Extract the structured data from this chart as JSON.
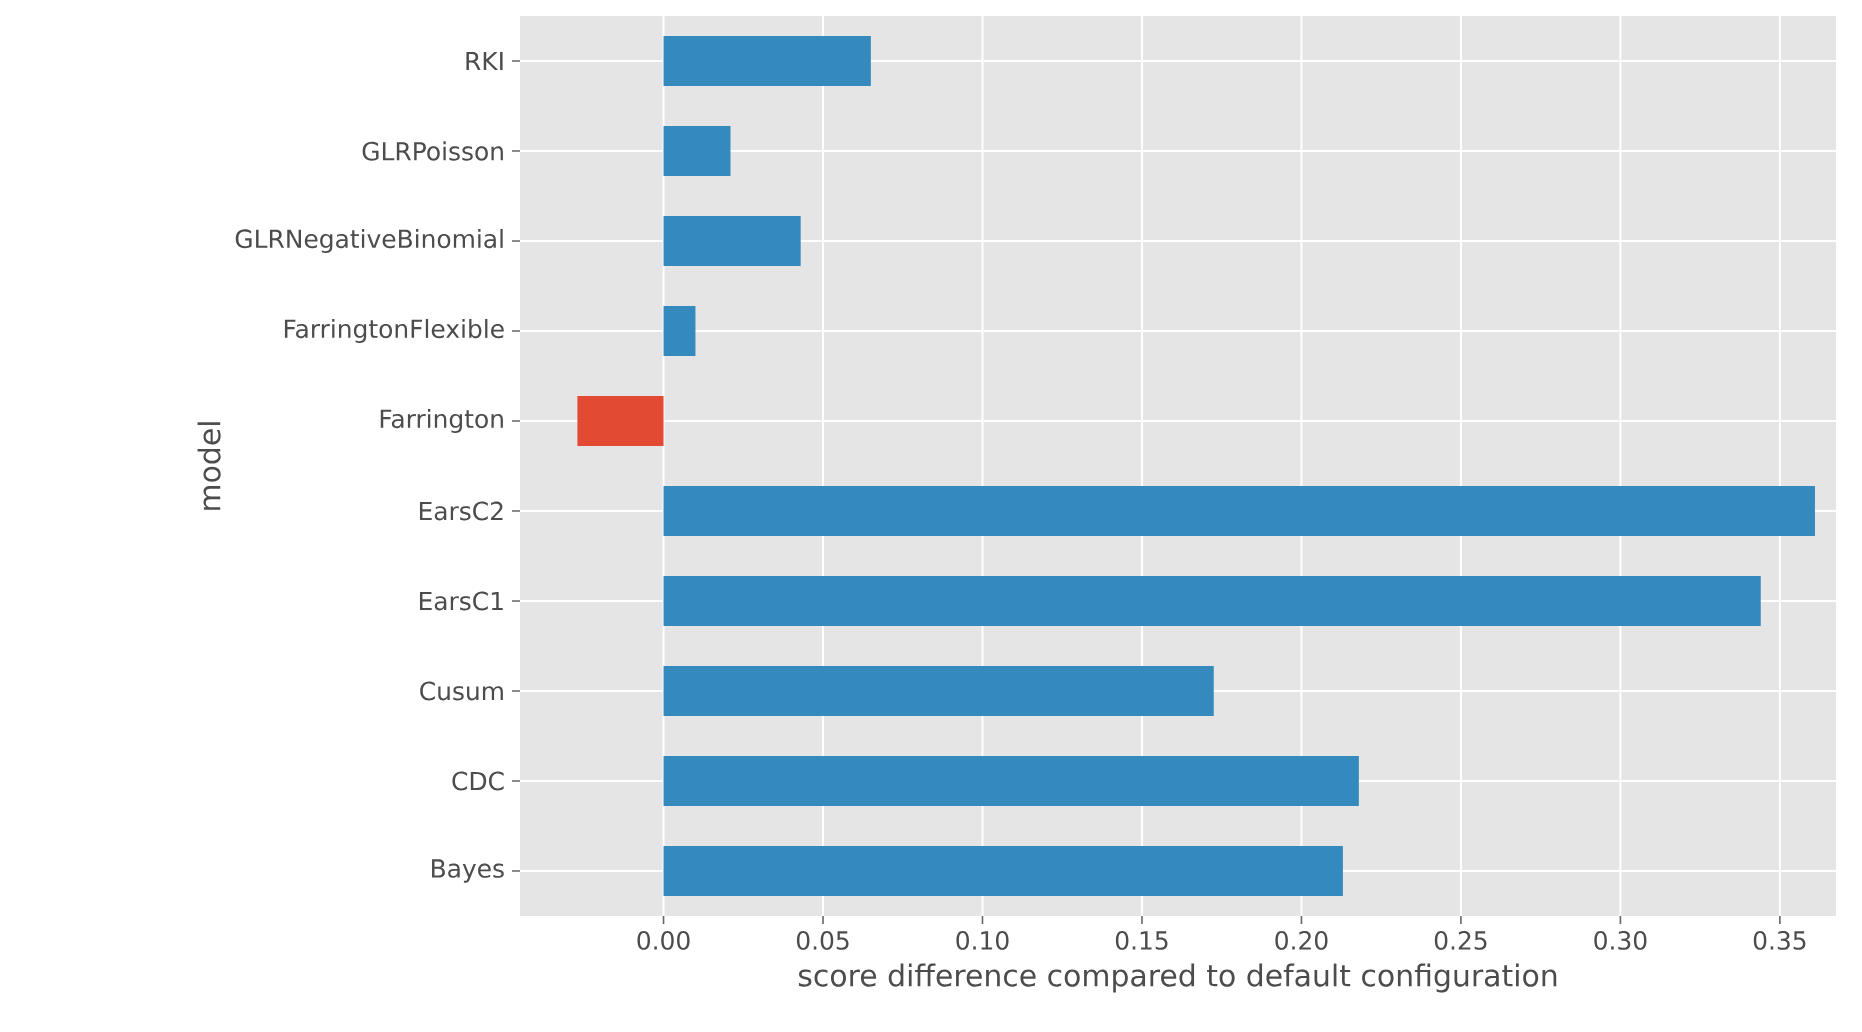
{
  "chart_data": {
    "type": "bar",
    "orientation": "horizontal",
    "xlabel": "score difference compared to default configuration",
    "ylabel": "model",
    "categories": [
      "RKI",
      "GLRPoisson",
      "GLRNegativeBinomial",
      "FarringtonFlexible",
      "Farrington",
      "EarsC2",
      "EarsC1",
      "Cusum",
      "CDC",
      "Bayes"
    ],
    "values": [
      0.065,
      0.021,
      0.043,
      0.01,
      -0.027,
      0.361,
      0.344,
      0.1725,
      0.218,
      0.213
    ],
    "colors": [
      "#348abd",
      "#348abd",
      "#348abd",
      "#348abd",
      "#e24a33",
      "#348abd",
      "#348abd",
      "#348abd",
      "#348abd",
      "#348abd"
    ],
    "xlim": [
      -0.045,
      0.3676
    ],
    "xticks": [
      {
        "value": 0,
        "label": "0.00"
      },
      {
        "value": 0.05,
        "label": "0.05"
      },
      {
        "value": 0.1,
        "label": "0.10"
      },
      {
        "value": 0.15,
        "label": "0.15"
      },
      {
        "value": 0.2,
        "label": "0.20"
      },
      {
        "value": 0.25,
        "label": "0.25"
      },
      {
        "value": 0.3,
        "label": "0.30"
      },
      {
        "value": 0.35,
        "label": "0.35"
      }
    ],
    "grid": true
  }
}
